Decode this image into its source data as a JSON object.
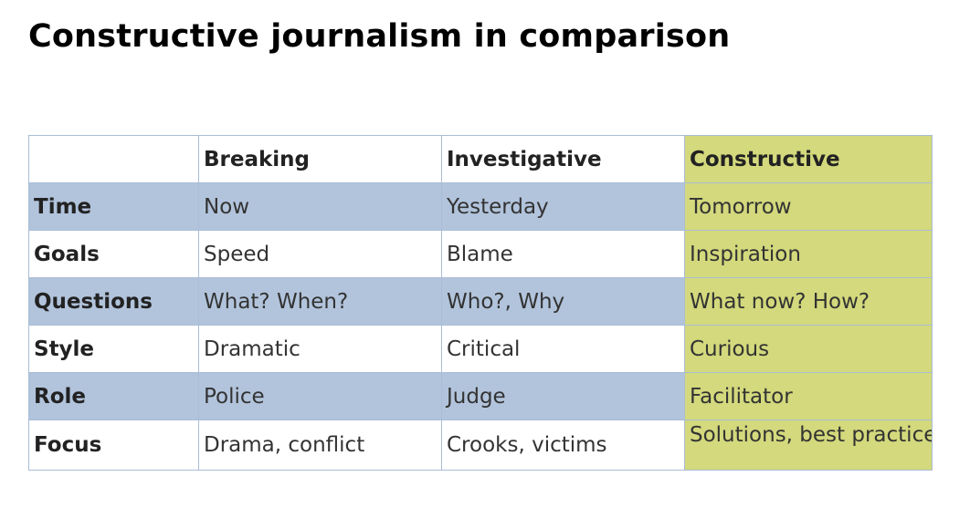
{
  "title": "Constructive journalism in comparison",
  "colors": {
    "shaded_row": "#b2c4dc",
    "constructive_column": "#d3d97c",
    "border": "#aabdd6"
  },
  "table": {
    "headers": [
      "",
      "Breaking",
      "Investigative",
      "Constructive"
    ],
    "rows": [
      {
        "label": "Time",
        "breaking": "Now",
        "investigative": "Yesterday",
        "constructive": "Tomorrow"
      },
      {
        "label": "Goals",
        "breaking": "Speed",
        "investigative": "Blame",
        "constructive": "Inspiration"
      },
      {
        "label": "Questions",
        "breaking": "What? When?",
        "investigative": "Who?, Why",
        "constructive": "What now? How?"
      },
      {
        "label": "Style",
        "breaking": "Dramatic",
        "investigative": "Critical",
        "constructive": "Curious"
      },
      {
        "label": "Role",
        "breaking": "Police",
        "investigative": "Judge",
        "constructive": "Facilitator"
      },
      {
        "label": "Focus",
        "breaking": "Drama, conflict",
        "investigative": "Crooks, victims",
        "constructive": "Solutions, best practice"
      }
    ]
  }
}
